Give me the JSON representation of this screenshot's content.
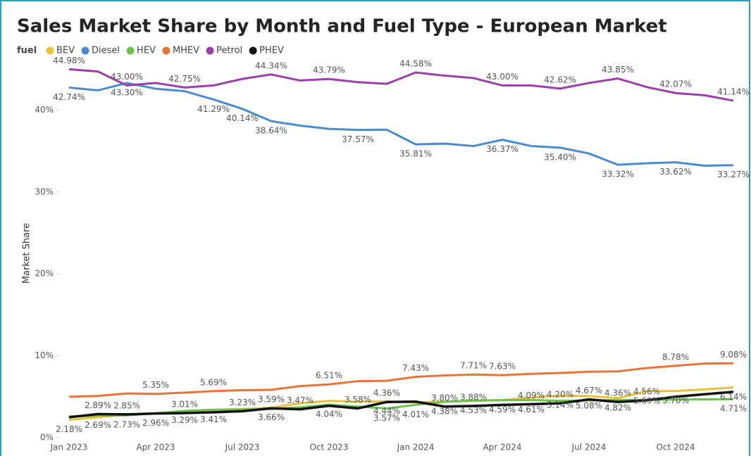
{
  "chart_data": {
    "type": "line",
    "title": "Sales Market Share by Month and Fuel Type - European Market",
    "legend_title": "fuel",
    "y_label": "Market Share",
    "categories": [
      "Jan 2023",
      null,
      null,
      "Apr 2023",
      null,
      null,
      "Jul 2023",
      null,
      null,
      "Oct 2023",
      null,
      null,
      "Jan 2024",
      null,
      null,
      "Apr 2024",
      null,
      null,
      "Jul 2024",
      null,
      null,
      "Oct 2024",
      null,
      null
    ],
    "ylim": [
      0,
      46.3
    ],
    "yticks": [
      {
        "value": 0,
        "label": "0%"
      },
      {
        "value": 10,
        "label": "10%"
      },
      {
        "value": 20,
        "label": "20%"
      },
      {
        "value": 30,
        "label": "30%"
      },
      {
        "value": 40,
        "label": "40%"
      }
    ],
    "series": [
      {
        "name": "BEV",
        "color": "#e8c13b",
        "label_side": "below",
        "values": [
          2.18,
          2.5,
          2.8,
          3.0,
          3.2,
          3.4,
          3.5,
          3.66,
          4.2,
          4.5,
          4.4,
          4.44,
          4.3,
          4.4,
          4.5,
          4.6,
          4.9,
          5.14,
          5.08,
          4.82,
          5.69,
          5.7,
          5.9,
          6.14
        ],
        "value_labels": [
          "2.18%",
          null,
          null,
          null,
          null,
          null,
          null,
          "3.66%",
          null,
          null,
          null,
          "4.44%",
          null,
          null,
          null,
          null,
          null,
          "5.14%",
          "5.08%",
          "4.82%",
          "5.69%",
          "5.70%",
          null,
          "6.14%"
        ]
      },
      {
        "name": "Diesel",
        "color": "#4a8bd0",
        "label_side": "below",
        "values": [
          42.74,
          42.4,
          43.3,
          42.6,
          42.3,
          41.29,
          40.14,
          38.64,
          38.1,
          37.7,
          37.57,
          37.6,
          35.81,
          35.9,
          35.6,
          36.37,
          35.6,
          35.4,
          34.7,
          33.32,
          33.5,
          33.62,
          33.2,
          33.27
        ],
        "value_labels": [
          "42.74%",
          null,
          "43.30%",
          null,
          null,
          "41.29%",
          "40.14%",
          "38.64%",
          null,
          null,
          "37.57%",
          null,
          "35.81%",
          null,
          null,
          "36.37%",
          null,
          "35.40%",
          null,
          "33.32%",
          null,
          "33.62%",
          null,
          "33.27%"
        ]
      },
      {
        "name": "HEV",
        "color": "#6cc24a",
        "label_side": "below",
        "values": [
          2.6,
          2.69,
          2.73,
          2.96,
          3.29,
          3.41,
          3.45,
          3.5,
          3.7,
          4.04,
          3.8,
          3.57,
          4.01,
          4.38,
          4.53,
          4.59,
          4.61,
          4.5,
          4.55,
          4.6,
          4.62,
          4.65,
          4.68,
          4.71
        ],
        "value_labels": [
          null,
          "2.69%",
          "2.73%",
          "2.96%",
          "3.29%",
          "3.41%",
          null,
          null,
          null,
          "4.04%",
          null,
          "3.57%",
          "4.01%",
          "4.38%",
          "4.53%",
          "4.59%",
          "4.61%",
          null,
          null,
          null,
          null,
          null,
          null,
          "4.71%"
        ]
      },
      {
        "name": "MHEV",
        "color": "#e8743b",
        "label_side": "above",
        "values": [
          5.0,
          5.1,
          5.4,
          5.35,
          5.5,
          5.69,
          5.8,
          5.85,
          6.3,
          6.51,
          6.9,
          6.95,
          7.43,
          7.6,
          7.71,
          7.63,
          7.8,
          7.9,
          8.05,
          8.1,
          8.5,
          8.78,
          9.05,
          9.08
        ],
        "value_labels": [
          null,
          null,
          null,
          "5.35%",
          null,
          "5.69%",
          null,
          null,
          null,
          "6.51%",
          null,
          null,
          "7.43%",
          null,
          "7.71%",
          "7.63%",
          null,
          null,
          null,
          null,
          null,
          "8.78%",
          null,
          "9.08%"
        ]
      },
      {
        "name": "Petrol",
        "color": "#9b3fa8",
        "label_side": "above",
        "values": [
          44.98,
          44.7,
          43.0,
          43.3,
          42.75,
          43.0,
          43.8,
          44.34,
          43.6,
          43.79,
          43.4,
          43.2,
          44.58,
          44.2,
          43.9,
          43.0,
          43.0,
          42.62,
          43.3,
          43.85,
          42.8,
          42.07,
          41.8,
          41.14
        ],
        "value_labels": [
          "44.98%",
          null,
          "43.00%",
          null,
          "42.75%",
          null,
          null,
          "44.34%",
          null,
          "43.79%",
          null,
          null,
          "44.58%",
          null,
          null,
          "43.00%",
          null,
          "42.62%",
          null,
          "43.85%",
          null,
          "42.07%",
          null,
          "41.14%"
        ]
      },
      {
        "name": "PHEV",
        "color": "#111111",
        "label_side": "above",
        "values": [
          2.5,
          2.89,
          2.85,
          2.95,
          3.01,
          3.1,
          3.23,
          3.59,
          3.47,
          3.9,
          3.58,
          4.36,
          4.4,
          3.8,
          3.88,
          4.0,
          4.09,
          4.2,
          4.67,
          4.36,
          4.56,
          5.0,
          5.3,
          5.6
        ],
        "value_labels": [
          null,
          "2.89%",
          "2.85%",
          null,
          "3.01%",
          null,
          "3.23%",
          "3.59%",
          "3.47%",
          null,
          "3.58%",
          "4.36%",
          null,
          "3.80%",
          "3.88%",
          null,
          "4.09%",
          "4.20%",
          "4.67%",
          "4.36%",
          "4.56%",
          null,
          null,
          null
        ]
      }
    ]
  }
}
